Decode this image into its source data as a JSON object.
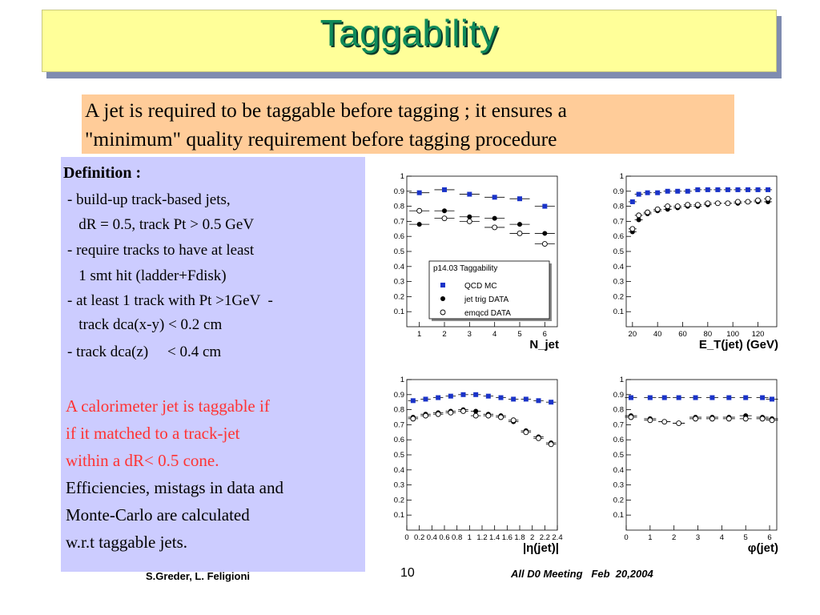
{
  "title": "Taggability",
  "intro": {
    "line1": "A jet is required to be taggable before tagging ; it ensures a",
    "line2": "\"minimum\" quality requirement before tagging procedure"
  },
  "definition": {
    "heading": "Definition :",
    "lines": [
      "- build-up track-based jets,",
      "   dR = 0.5, track Pt > 0.5 GeV",
      "- require tracks to have at least",
      "   1 smt hit (ladder+Fdisk)",
      "- at least 1 track with Pt >1GeV  -",
      "   track dca(x-y) < 0.2 cm",
      "- track dca(z)     < 0.4 cm"
    ],
    "red_lines": [
      "A calorimeter jet is taggable if",
      "if it matched to a track-jet",
      "within a dR< 0.5 cone."
    ],
    "black_lines": [
      "Efficiencies, mistags in data and",
      "Monte-Carlo are calculated",
      "w.r.t taggable jets."
    ]
  },
  "footer": {
    "authors": "S.Greder, L. Feligioni",
    "page": "10",
    "meeting": "All D0 Meeting   Feb  20,2004"
  },
  "legend": {
    "title": "p14.03 Taggability",
    "entries": [
      "QCD MC",
      "jet trig DATA",
      "emqcd DATA"
    ]
  },
  "colors": {
    "qcd": "#1a33c8",
    "jettrig": "#000000",
    "emqcd": "#ffffff"
  },
  "chart_data": [
    {
      "type": "scatter",
      "xlabel": "N_jet",
      "xlim": [
        0.5,
        6.5
      ],
      "ylim": [
        0,
        1
      ],
      "xticks": [
        1,
        2,
        3,
        4,
        5,
        6
      ],
      "xticklabels": [
        "1",
        "2",
        "3",
        "4",
        "5",
        "6"
      ],
      "series": [
        {
          "name": "QCD MC",
          "marker": "square",
          "x": [
            1,
            2,
            3,
            4,
            5,
            6
          ],
          "y": [
            0.89,
            0.91,
            0.88,
            0.86,
            0.85,
            0.8
          ]
        },
        {
          "name": "jet trig DATA",
          "marker": "filled-circle",
          "x": [
            1,
            2,
            3,
            4,
            5,
            6
          ],
          "y": [
            0.68,
            0.77,
            0.73,
            0.72,
            0.68,
            0.62
          ]
        },
        {
          "name": "emqcd DATA",
          "marker": "open-circle",
          "x": [
            1,
            2,
            3,
            4,
            5,
            6
          ],
          "y": [
            0.77,
            0.72,
            0.7,
            0.66,
            0.62,
            0.55
          ]
        }
      ]
    },
    {
      "type": "scatter",
      "xlabel": "E_T(jet) (GeV)",
      "xlim": [
        15,
        135
      ],
      "ylim": [
        0,
        1
      ],
      "xticks": [
        20,
        40,
        60,
        80,
        100,
        120
      ],
      "xticklabels": [
        "20",
        "40",
        "60",
        "80",
        "100",
        "120"
      ],
      "series": [
        {
          "name": "QCD MC",
          "marker": "square",
          "x": [
            20,
            25,
            32,
            40,
            48,
            56,
            64,
            72,
            80,
            88,
            96,
            104,
            112,
            120,
            128
          ],
          "y": [
            0.83,
            0.88,
            0.89,
            0.89,
            0.9,
            0.9,
            0.9,
            0.91,
            0.91,
            0.91,
            0.91,
            0.91,
            0.91,
            0.91,
            0.91
          ]
        },
        {
          "name": "jet trig DATA",
          "marker": "filled-circle",
          "x": [
            20,
            25,
            32,
            40,
            48,
            56,
            64,
            72,
            80,
            88,
            96,
            104,
            112,
            120,
            128
          ],
          "y": [
            0.63,
            0.71,
            0.75,
            0.77,
            0.78,
            0.79,
            0.8,
            0.8,
            0.81,
            0.82,
            0.82,
            0.82,
            0.83,
            0.83,
            0.83
          ]
        },
        {
          "name": "emqcd DATA",
          "marker": "open-circle",
          "x": [
            20,
            25,
            32,
            40,
            48,
            56,
            64,
            72,
            80,
            88,
            96,
            104,
            112,
            120,
            128
          ],
          "y": [
            0.65,
            0.74,
            0.76,
            0.78,
            0.8,
            0.8,
            0.81,
            0.81,
            0.82,
            0.82,
            0.82,
            0.83,
            0.83,
            0.84,
            0.85
          ]
        }
      ]
    },
    {
      "type": "scatter",
      "xlabel": "|η(jet)|",
      "xlim": [
        0,
        2.4
      ],
      "ylim": [
        0,
        1
      ],
      "xticks": [
        0,
        0.2,
        0.4,
        0.6,
        0.8,
        1,
        1.2,
        1.4,
        1.6,
        1.8,
        2,
        2.2,
        2.4
      ],
      "xticklabels": [
        "0",
        "0.2",
        "0.4",
        "0.6",
        "0.8",
        "1",
        "1.2",
        "1.4",
        "1.6",
        "1.8",
        "2",
        "2.2",
        "2.4"
      ],
      "series": [
        {
          "name": "QCD MC",
          "marker": "square",
          "x": [
            0.1,
            0.3,
            0.5,
            0.7,
            0.9,
            1.1,
            1.3,
            1.5,
            1.7,
            1.9,
            2.1,
            2.3
          ],
          "y": [
            0.86,
            0.87,
            0.88,
            0.89,
            0.9,
            0.9,
            0.89,
            0.88,
            0.87,
            0.87,
            0.86,
            0.85
          ]
        },
        {
          "name": "jet trig DATA",
          "marker": "filled-circle",
          "x": [
            0.1,
            0.3,
            0.5,
            0.7,
            0.9,
            1.1,
            1.3,
            1.5,
            1.7,
            1.9,
            2.1,
            2.3
          ],
          "y": [
            0.75,
            0.77,
            0.78,
            0.79,
            0.8,
            0.79,
            0.77,
            0.76,
            0.72,
            0.66,
            0.62,
            0.58
          ]
        },
        {
          "name": "emqcd DATA",
          "marker": "open-circle",
          "x": [
            0.1,
            0.3,
            0.5,
            0.7,
            0.9,
            1.1,
            1.3,
            1.5,
            1.7,
            1.9,
            2.1,
            2.3
          ],
          "y": [
            0.74,
            0.76,
            0.77,
            0.78,
            0.79,
            0.76,
            0.76,
            0.75,
            0.73,
            0.65,
            0.61,
            0.57
          ]
        }
      ]
    },
    {
      "type": "scatter",
      "xlabel": "φ(jet)",
      "xlim": [
        0,
        6.3
      ],
      "ylim": [
        0,
        1
      ],
      "xticks": [
        0,
        1,
        2,
        3,
        4,
        5,
        6
      ],
      "xticklabels": [
        "0",
        "1",
        "2",
        "3",
        "4",
        "5",
        "6"
      ],
      "series": [
        {
          "name": "QCD MC",
          "marker": "square",
          "x": [
            0.2,
            1.0,
            1.6,
            2.2,
            2.9,
            3.6,
            4.3,
            5.0,
            5.7,
            6.1
          ],
          "y": [
            0.88,
            0.88,
            0.88,
            0.88,
            0.88,
            0.88,
            0.88,
            0.88,
            0.88,
            0.87
          ]
        },
        {
          "name": "jet trig DATA",
          "marker": "filled-circle",
          "x": [
            0.2,
            1.0,
            1.6,
            2.2,
            2.9,
            3.6,
            4.3,
            5.0,
            5.7,
            6.1
          ],
          "y": [
            0.76,
            0.74,
            0.72,
            0.71,
            0.75,
            0.75,
            0.75,
            0.76,
            0.75,
            0.74
          ]
        },
        {
          "name": "emqcd DATA",
          "marker": "open-circle",
          "x": [
            0.2,
            1.0,
            1.6,
            2.2,
            2.9,
            3.6,
            4.3,
            5.0,
            5.7,
            6.1
          ],
          "y": [
            0.75,
            0.73,
            0.72,
            0.71,
            0.74,
            0.74,
            0.74,
            0.74,
            0.74,
            0.73
          ]
        }
      ]
    }
  ]
}
